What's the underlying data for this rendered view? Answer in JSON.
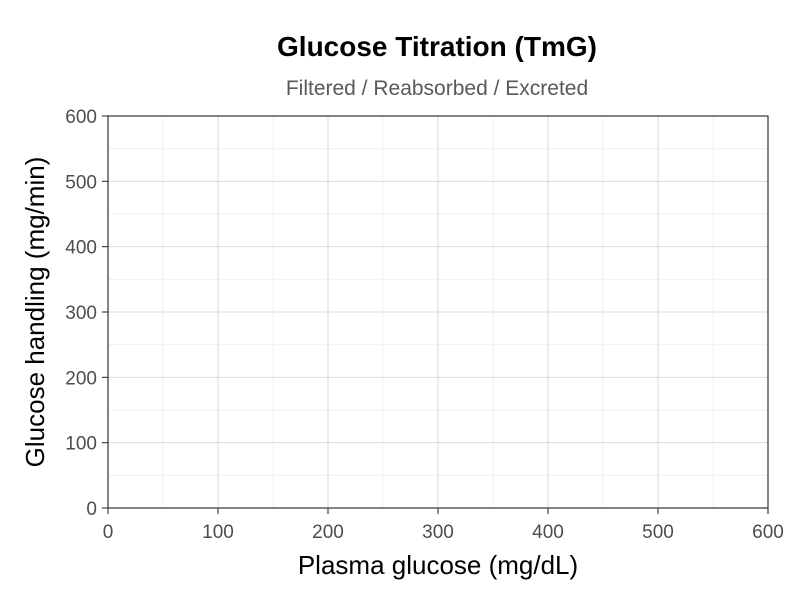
{
  "chart_data": {
    "type": "line",
    "title": "Glucose Titration (TmG)",
    "subtitle": "Filtered / Reabsorbed / Excreted",
    "xlabel": "Plasma glucose (mg/dL)",
    "ylabel": "Glucose handling (mg/min)",
    "xlim": [
      0,
      600
    ],
    "ylim": [
      0,
      600
    ],
    "x_ticks": [
      0,
      100,
      200,
      300,
      400,
      500,
      600
    ],
    "y_ticks": [
      0,
      100,
      200,
      300,
      400,
      500,
      600
    ],
    "x_tick_labels": [
      "0",
      "100",
      "200",
      "300",
      "400",
      "500",
      "600"
    ],
    "y_tick_labels": [
      "0",
      "100",
      "200",
      "300",
      "400",
      "500",
      "600"
    ],
    "grid": true,
    "series": []
  }
}
